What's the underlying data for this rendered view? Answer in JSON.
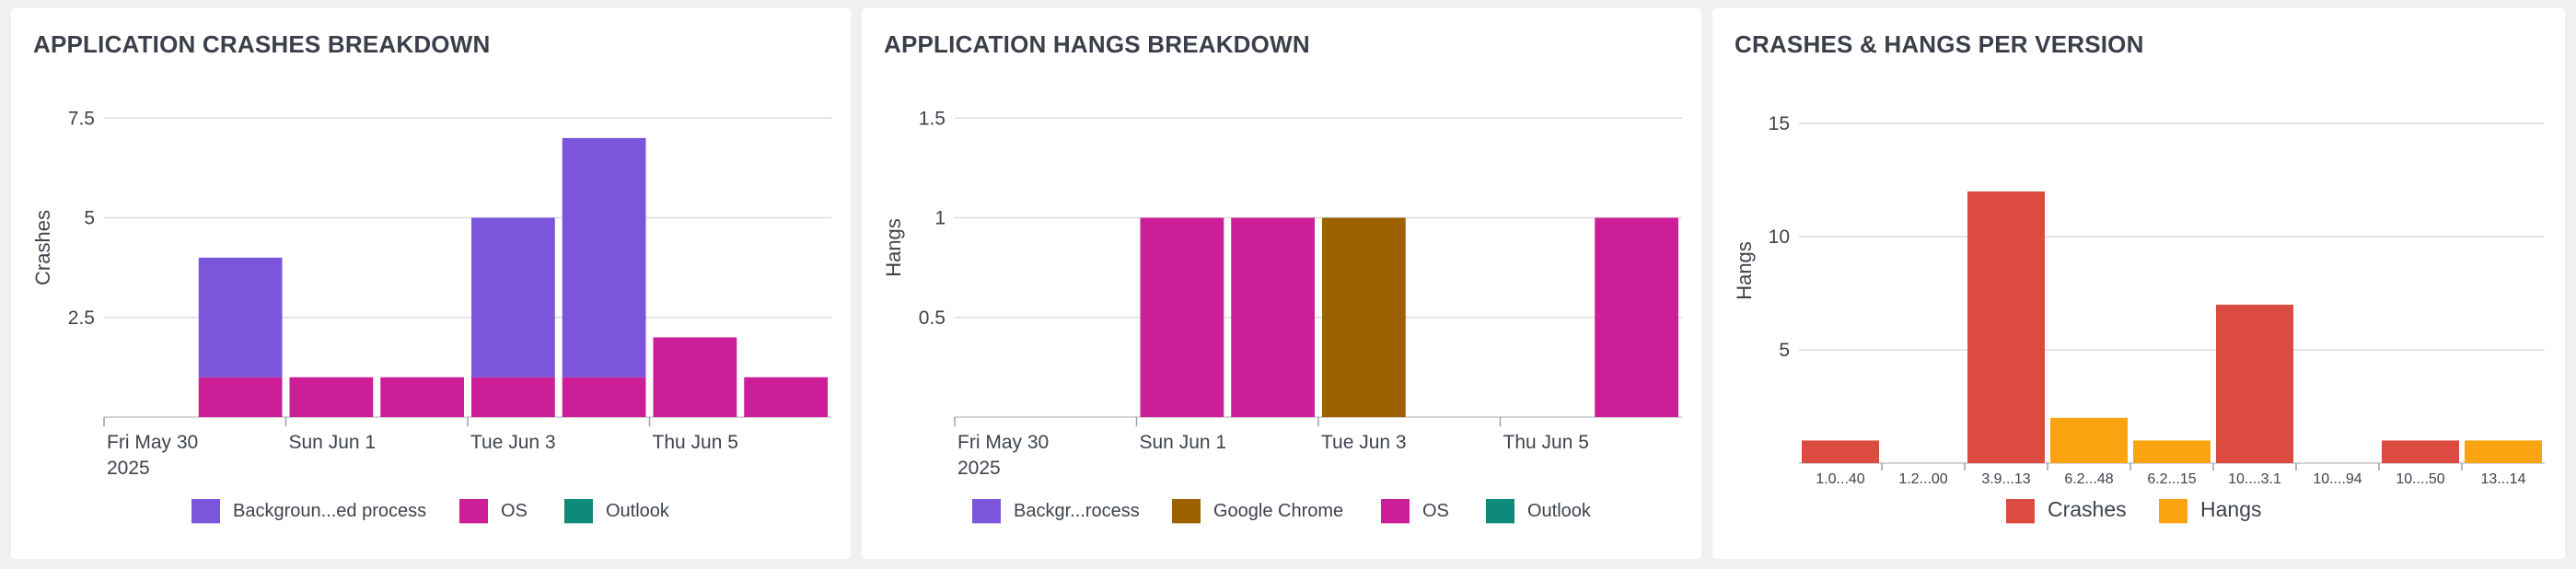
{
  "panels": [
    {
      "title": "APPLICATION CRASHES BREAKDOWN"
    },
    {
      "title": "APPLICATION HANGS BREAKDOWN"
    },
    {
      "title": "CRASHES & HANGS PER VERSION"
    }
  ],
  "chart_data": [
    {
      "type": "bar",
      "stacked": true,
      "title": "APPLICATION CRASHES BREAKDOWN",
      "ylabel": "Crashes",
      "ylim": [
        0,
        8.5
      ],
      "y_ticks": [
        2.5,
        5,
        7.5
      ],
      "y_tick_labels": [
        "2.5",
        "5",
        "7.5"
      ],
      "x_tick_labels": [
        {
          "line1": "Fri May 30",
          "line2": "2025",
          "at": 0
        },
        {
          "line1": "Sun Jun 1",
          "line2": "",
          "at": 2
        },
        {
          "line1": "Tue Jun 3",
          "line2": "",
          "at": 4
        },
        {
          "line1": "Thu Jun 5",
          "line2": "",
          "at": 6
        }
      ],
      "categories": [
        "2025-05-30",
        "2025-05-31",
        "2025-06-01",
        "2025-06-02",
        "2025-06-03",
        "2025-06-04",
        "2025-06-05",
        "2025-06-06"
      ],
      "series": [
        {
          "name": "Backgroun...ed process",
          "color": "#7b55dc",
          "values": [
            0,
            3,
            0,
            0,
            4,
            6,
            0,
            0
          ]
        },
        {
          "name": "OS",
          "color": "#cc1e96",
          "values": [
            0,
            1,
            1,
            1,
            1,
            1,
            2,
            1
          ]
        },
        {
          "name": "Outlook",
          "color": "#0e8a7b",
          "values": [
            0,
            0,
            0,
            0,
            0,
            0,
            0,
            0
          ]
        }
      ],
      "grid": true,
      "legend": "bottom"
    },
    {
      "type": "bar",
      "stacked": true,
      "title": "APPLICATION HANGS BREAKDOWN",
      "ylabel": "Hangs",
      "ylim": [
        0,
        1.7
      ],
      "y_ticks": [
        0.5,
        1,
        1.5
      ],
      "y_tick_labels": [
        "0.5",
        "1",
        "1.5"
      ],
      "x_tick_labels": [
        {
          "line1": "Fri May 30",
          "line2": "2025",
          "at": 0
        },
        {
          "line1": "Sun Jun 1",
          "line2": "",
          "at": 2
        },
        {
          "line1": "Tue Jun 3",
          "line2": "",
          "at": 4
        },
        {
          "line1": "Thu Jun 5",
          "line2": "",
          "at": 6
        }
      ],
      "categories": [
        "2025-05-30",
        "2025-05-31",
        "2025-06-01",
        "2025-06-02",
        "2025-06-03",
        "2025-06-04",
        "2025-06-05",
        "2025-06-06"
      ],
      "series": [
        {
          "name": "Backgr...rocess",
          "color": "#7b55dc",
          "values": [
            0,
            0,
            0,
            0,
            0,
            0,
            0,
            0
          ]
        },
        {
          "name": "Google Chrome",
          "color": "#9d6100",
          "values": [
            0,
            0,
            0,
            0,
            1,
            0,
            0,
            0
          ]
        },
        {
          "name": "OS",
          "color": "#cc1e96",
          "values": [
            0,
            0,
            1,
            1,
            0,
            0,
            0,
            1
          ]
        },
        {
          "name": "Outlook",
          "color": "#0e8a7b",
          "values": [
            0,
            0,
            0,
            0,
            0,
            0,
            0,
            0
          ]
        }
      ],
      "grid": true,
      "legend": "bottom"
    },
    {
      "type": "bar",
      "stacked": false,
      "title": "CRASHES & HANGS PER VERSION",
      "ylabel": "Hangs",
      "ylim": [
        0,
        17
      ],
      "y_ticks": [
        5,
        10,
        15
      ],
      "y_tick_labels": [
        "5",
        "10",
        "15"
      ],
      "categories": [
        "1.0...40",
        "1.2...00",
        "3.9...13",
        "6.2...48",
        "6.2...15",
        "10....3.1",
        "10....94",
        "10....50",
        "13...14"
      ],
      "series": [
        {
          "name": "Crashes",
          "color": "#dc4b40",
          "values": [
            1,
            0,
            12,
            0,
            0,
            7,
            0,
            1,
            0
          ]
        },
        {
          "name": "Hangs",
          "color": "#fca311",
          "values": [
            0,
            0,
            0,
            2,
            1,
            0,
            0,
            0,
            1
          ]
        }
      ],
      "grid": true,
      "legend": "bottom"
    }
  ]
}
